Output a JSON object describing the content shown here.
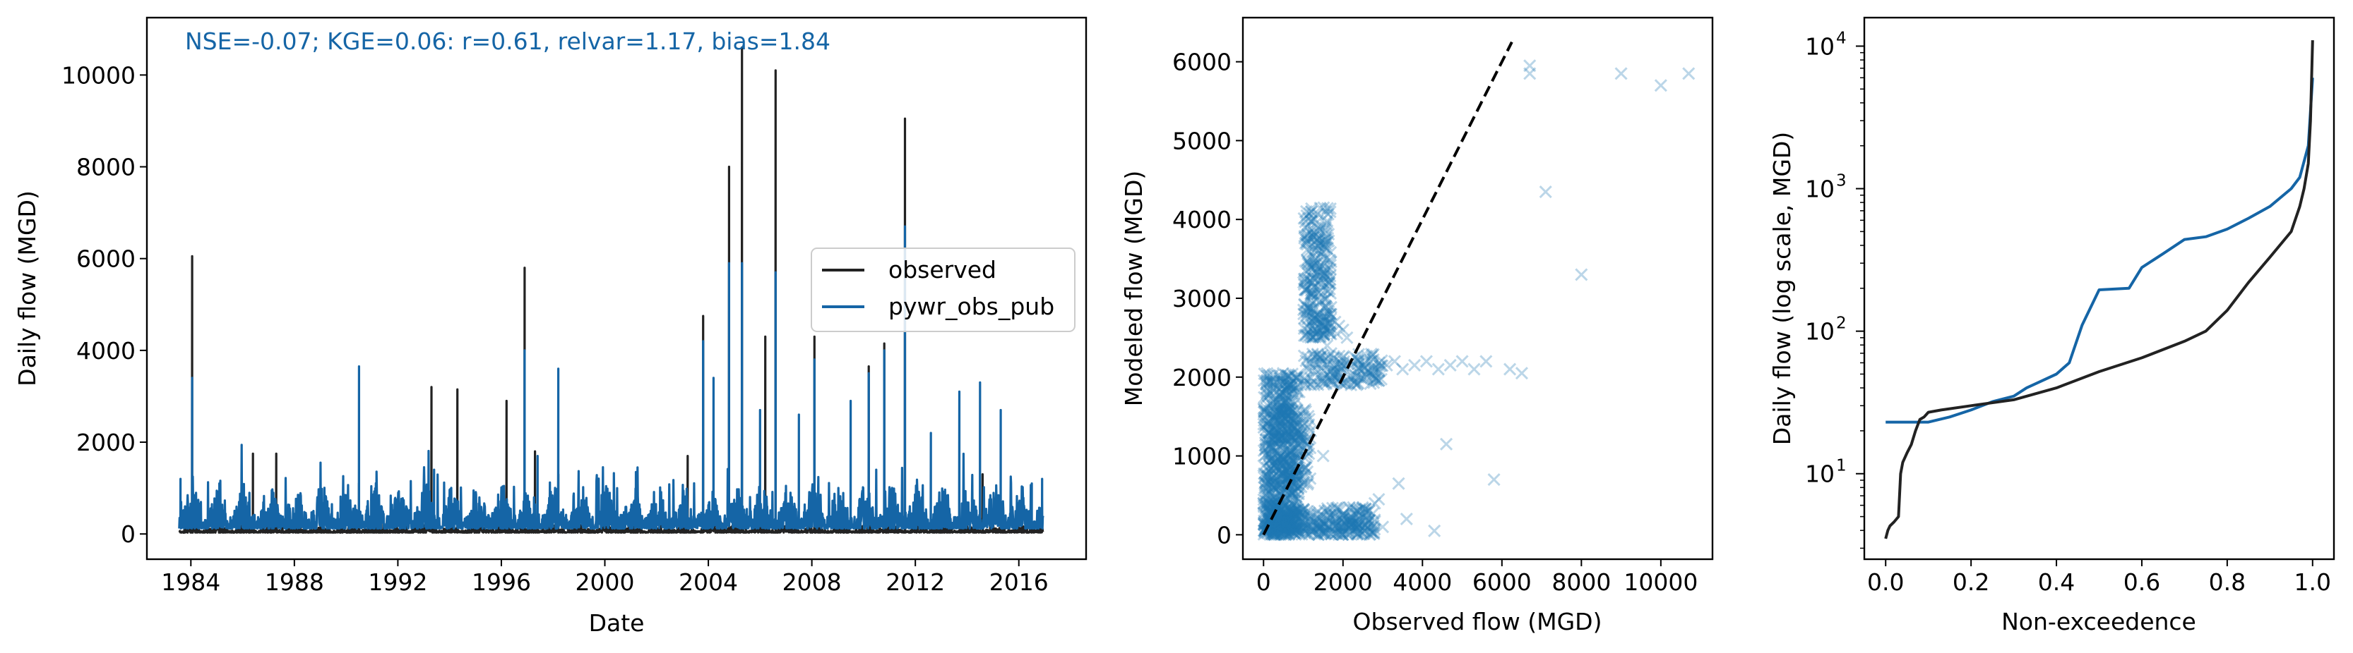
{
  "figure": {
    "background": "#ffffff"
  },
  "colors": {
    "observed": "#222222",
    "model": "#1f77b4",
    "model_dark": "#1565a6",
    "scatter": "#1f77b4",
    "one_to_one": "#000000"
  },
  "chart_data": [
    {
      "type": "line",
      "id": "timeseries",
      "annotation": "NSE=-0.07; KGE=0.06: r=0.61, relvar=1.17, bias=1.84",
      "xlabel": "Date",
      "ylabel": "Daily flow (MGD)",
      "xlim": [
        1982.3,
        2018.6
      ],
      "ylim": [
        -550,
        11250
      ],
      "xticks": [
        1984,
        1988,
        1992,
        1996,
        2000,
        2004,
        2008,
        2012,
        2016
      ],
      "xtick_labels": [
        "1984",
        "1988",
        "1992",
        "1996",
        "2000",
        "2004",
        "2008",
        "2012",
        "2016"
      ],
      "yticks": [
        0,
        2000,
        4000,
        6000,
        8000,
        10000
      ],
      "ytick_labels": [
        "0",
        "2000",
        "4000",
        "6000",
        "8000",
        "10000"
      ],
      "legend": {
        "placement": "center-right",
        "entries": [
          "observed",
          "pywr_obs_pub"
        ]
      },
      "series": [
        {
          "name": "observed",
          "peaks": [
            [
              1984.05,
              6050
            ],
            [
              1986.4,
              1750
            ],
            [
              1987.3,
              1750
            ],
            [
              1990.5,
              1100
            ],
            [
              1993.3,
              3200
            ],
            [
              1994.3,
              3150
            ],
            [
              1996.2,
              2900
            ],
            [
              1996.9,
              5800
            ],
            [
              1997.3,
              1800
            ],
            [
              1998.2,
              1300
            ],
            [
              2000.1,
              800
            ],
            [
              2003.2,
              1700
            ],
            [
              2003.8,
              4750
            ],
            [
              2004.8,
              8000
            ],
            [
              2005.3,
              10600
            ],
            [
              2006.2,
              4300
            ],
            [
              2006.6,
              10100
            ],
            [
              2008.1,
              4300
            ],
            [
              2010.2,
              3650
            ],
            [
              2010.8,
              4150
            ],
            [
              2011.6,
              9050
            ],
            [
              2014.6,
              1300
            ]
          ]
        },
        {
          "name": "pywr_obs_pub",
          "peaks": [
            [
              1983.6,
              1200
            ],
            [
              1984.05,
              3400
            ],
            [
              1985.1,
              1100
            ],
            [
              1990.5,
              3650
            ],
            [
              1993.4,
              1400
            ],
            [
              1996.9,
              4000
            ],
            [
              1997.4,
              1700
            ],
            [
              1998.2,
              3600
            ],
            [
              2001.2,
              1350
            ],
            [
              2003.8,
              4200
            ],
            [
              2004.2,
              3400
            ],
            [
              2004.8,
              5900
            ],
            [
              2005.3,
              5900
            ],
            [
              2006.0,
              2700
            ],
            [
              2006.6,
              5700
            ],
            [
              2007.5,
              2600
            ],
            [
              2008.1,
              3800
            ],
            [
              2009.5,
              2900
            ],
            [
              2010.2,
              3500
            ],
            [
              2010.8,
              4000
            ],
            [
              2011.6,
              6700
            ],
            [
              2012.6,
              2200
            ],
            [
              2013.7,
              3100
            ],
            [
              2014.5,
              3300
            ],
            [
              2015.3,
              2700
            ],
            [
              2016.5,
              1100
            ],
            [
              2016.9,
              1200
            ]
          ]
        }
      ]
    },
    {
      "type": "scatter",
      "id": "scatter",
      "xlabel": "Observed flow (MGD)",
      "ylabel": "Modeled flow (MGD)",
      "xlim": [
        -520,
        11300
      ],
      "ylim": [
        -310,
        6560
      ],
      "xticks": [
        0,
        2000,
        4000,
        6000,
        8000,
        10000
      ],
      "xtick_labels": [
        "0",
        "2000",
        "4000",
        "6000",
        "8000",
        "10000"
      ],
      "yticks": [
        0,
        1000,
        2000,
        3000,
        4000,
        5000,
        6000
      ],
      "ytick_labels": [
        "0",
        "1000",
        "2000",
        "3000",
        "4000",
        "5000",
        "6000"
      ],
      "one_to_one_line": {
        "x": [
          0,
          6250
        ],
        "y": [
          0,
          6250
        ],
        "style": "dashed"
      },
      "marker": "x",
      "points": [
        [
          6700,
          5950
        ],
        [
          6700,
          5850
        ],
        [
          9000,
          5850
        ],
        [
          10000,
          5700
        ],
        [
          10700,
          5850
        ],
        [
          7100,
          4350
        ],
        [
          8000,
          3300
        ],
        [
          4600,
          1150
        ],
        [
          3400,
          650
        ],
        [
          5800,
          700
        ],
        [
          4300,
          50
        ],
        [
          6200,
          2100
        ],
        [
          6500,
          2050
        ],
        [
          2800,
          400
        ],
        [
          2900,
          450
        ],
        [
          1200,
          4100
        ],
        [
          1300,
          4000
        ],
        [
          1100,
          3900
        ],
        [
          1250,
          3800
        ],
        [
          1400,
          3700
        ],
        [
          1300,
          3500
        ],
        [
          1200,
          3400
        ],
        [
          1350,
          3300
        ],
        [
          1500,
          3200
        ],
        [
          1450,
          3100
        ],
        [
          1600,
          3000
        ],
        [
          1550,
          2900
        ],
        [
          1700,
          2800
        ],
        [
          1800,
          2700
        ],
        [
          1900,
          2650
        ],
        [
          2000,
          2600
        ],
        [
          1850,
          2550
        ],
        [
          2100,
          2500
        ],
        [
          1600,
          2400
        ],
        [
          1700,
          2300
        ],
        [
          1500,
          2200
        ],
        [
          2300,
          2250
        ],
        [
          2500,
          2150
        ],
        [
          2700,
          2200
        ],
        [
          2900,
          2100
        ],
        [
          3100,
          2150
        ],
        [
          3300,
          2200
        ],
        [
          3500,
          2100
        ],
        [
          3800,
          2150
        ],
        [
          4100,
          2200
        ],
        [
          4400,
          2100
        ],
        [
          4700,
          2150
        ],
        [
          5000,
          2200
        ],
        [
          5300,
          2100
        ],
        [
          5600,
          2200
        ],
        [
          2200,
          1900
        ],
        [
          2600,
          2000
        ],
        [
          1500,
          1000
        ],
        [
          1100,
          800
        ],
        [
          2400,
          150
        ],
        [
          3000,
          100
        ],
        [
          3600,
          200
        ],
        [
          2000,
          250
        ],
        [
          1800,
          100
        ]
      ],
      "dense_regions": [
        {
          "x": [
            0,
            900
          ],
          "y": [
            0,
            2050
          ],
          "n": 700
        },
        {
          "x": [
            0,
            2800
          ],
          "y": [
            0,
            350
          ],
          "n": 350
        },
        {
          "x": [
            1000,
            1700
          ],
          "y": [
            2500,
            4150
          ],
          "n": 260
        },
        {
          "x": [
            1000,
            3000
          ],
          "y": [
            1900,
            2300
          ],
          "n": 150
        },
        {
          "x": [
            300,
            1200
          ],
          "y": [
            600,
            1600
          ],
          "n": 150
        }
      ]
    },
    {
      "type": "line",
      "id": "fdc",
      "xlabel": "Non-exceedence",
      "ylabel": "Daily flow (log scale, MGD)",
      "yscale": "log",
      "xlim": [
        -0.05,
        1.05
      ],
      "ylim_log10": [
        0.4,
        4.2
      ],
      "xticks": [
        0,
        0.2,
        0.4,
        0.6,
        0.8,
        1.0
      ],
      "xtick_labels": [
        "0.0",
        "0.2",
        "0.4",
        "0.6",
        "0.8",
        "1.0"
      ],
      "yticks_log10": [
        1,
        2,
        3,
        4
      ],
      "ytick_labels": [
        "10",
        "10",
        "10",
        "10"
      ],
      "ytick_exponents": [
        "1",
        "2",
        "3",
        "4"
      ],
      "series": [
        {
          "name": "observed",
          "x": [
            0.0,
            0.005,
            0.01,
            0.02,
            0.03,
            0.035,
            0.04,
            0.05,
            0.06,
            0.07,
            0.08,
            0.09,
            0.1,
            0.13,
            0.2,
            0.3,
            0.4,
            0.5,
            0.6,
            0.7,
            0.75,
            0.8,
            0.85,
            0.9,
            0.95,
            0.97,
            0.98,
            0.99,
            0.995,
            1.0
          ],
          "y": [
            3.5,
            4.0,
            4.3,
            4.6,
            5.0,
            10,
            12,
            14,
            16,
            20,
            24,
            25,
            27,
            28,
            30,
            33,
            40,
            52,
            65,
            85,
            100,
            140,
            220,
            330,
            500,
            750,
            1000,
            1500,
            3000,
            11000
          ]
        },
        {
          "name": "pywr_obs_pub",
          "x": [
            0.0,
            0.1,
            0.15,
            0.2,
            0.25,
            0.3,
            0.33,
            0.36,
            0.4,
            0.43,
            0.46,
            0.5,
            0.57,
            0.6,
            0.65,
            0.7,
            0.75,
            0.8,
            0.85,
            0.9,
            0.95,
            0.97,
            0.99,
            1.0
          ],
          "y": [
            23,
            23,
            25,
            28,
            32,
            35,
            40,
            44,
            50,
            60,
            110,
            195,
            200,
            280,
            350,
            440,
            460,
            520,
            620,
            750,
            1000,
            1200,
            2000,
            6000
          ]
        }
      ]
    }
  ]
}
